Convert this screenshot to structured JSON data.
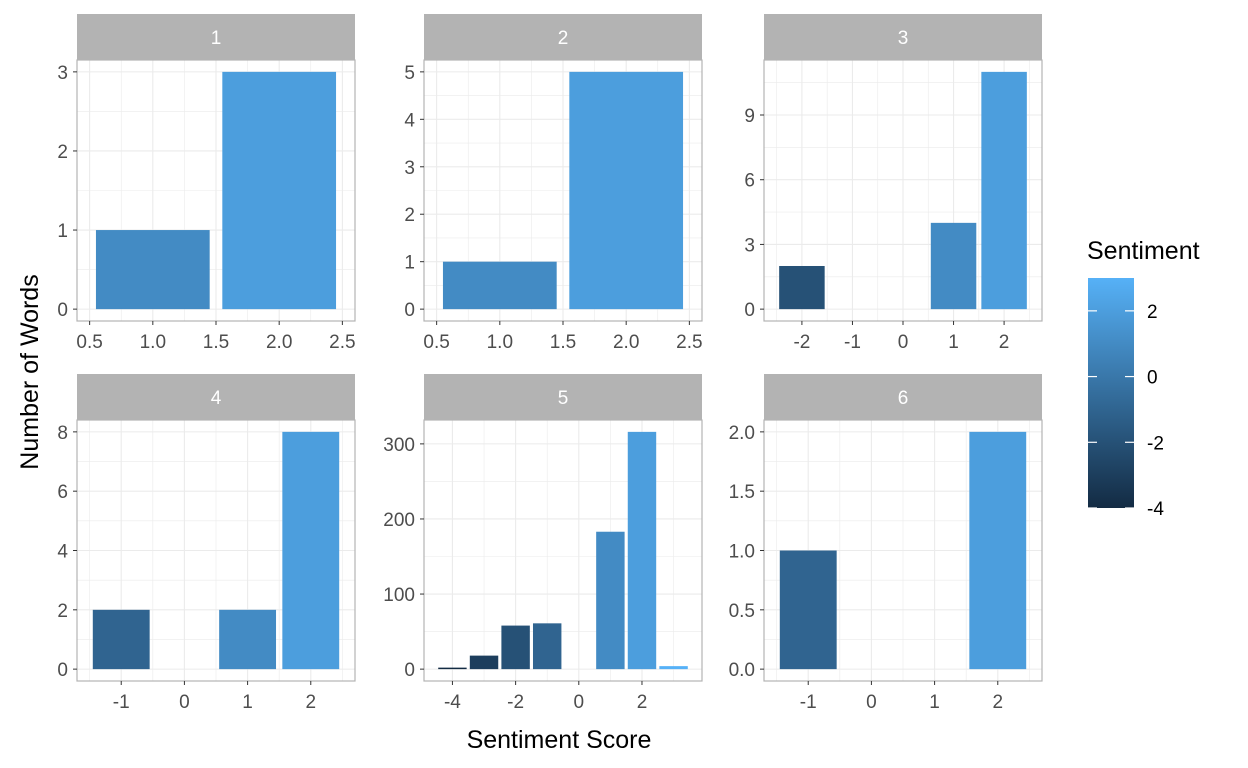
{
  "chart_data": {
    "type": "bar",
    "xlabel": "Sentiment Score",
    "ylabel": "Number of Words",
    "legend": {
      "title": "Sentiment",
      "placement": "right",
      "range": [
        -4,
        3
      ],
      "ticks": [
        2,
        0,
        -2,
        -4
      ],
      "tick_labels": [
        "2",
        "0",
        "-2",
        "-4"
      ],
      "color_low": "#132B43",
      "color_high": "#56B1F7"
    },
    "strip_color": "#b3b3b3",
    "grid": true,
    "facets": [
      {
        "label": "1",
        "x": [
          1,
          2
        ],
        "y": [
          1,
          3
        ],
        "xlim": [
          0.5,
          2.5
        ],
        "ylim": [
          0,
          3
        ],
        "xticks": [
          0.5,
          1.0,
          1.5,
          2.0,
          2.5
        ],
        "xtick_labels": [
          "0.5",
          "1.0",
          "1.5",
          "2.0",
          "2.5"
        ],
        "yticks": [
          0,
          1,
          2,
          3
        ],
        "ytick_labels": [
          "0",
          "1",
          "2",
          "3"
        ]
      },
      {
        "label": "2",
        "x": [
          1,
          2
        ],
        "y": [
          1,
          5
        ],
        "xlim": [
          0.5,
          2.5
        ],
        "ylim": [
          0,
          5
        ],
        "xticks": [
          0.5,
          1.0,
          1.5,
          2.0,
          2.5
        ],
        "xtick_labels": [
          "0.5",
          "1.0",
          "1.5",
          "2.0",
          "2.5"
        ],
        "yticks": [
          0,
          1,
          2,
          3,
          4,
          5
        ],
        "ytick_labels": [
          "0",
          "1",
          "2",
          "3",
          "4",
          "5"
        ]
      },
      {
        "label": "3",
        "x": [
          -2,
          1,
          2
        ],
        "y": [
          2,
          4,
          11
        ],
        "xlim": [
          -2.5,
          2.5
        ],
        "ylim": [
          0,
          11
        ],
        "xticks": [
          -2,
          -1,
          0,
          1,
          2
        ],
        "xtick_labels": [
          "-2",
          "-1",
          "0",
          "1",
          "2"
        ],
        "yticks": [
          0,
          3,
          6,
          9
        ],
        "ytick_labels": [
          "0",
          "3",
          "6",
          "9"
        ]
      },
      {
        "label": "4",
        "x": [
          -1,
          1,
          2
        ],
        "y": [
          2,
          2,
          8
        ],
        "xlim": [
          -1.5,
          2.5
        ],
        "ylim": [
          0,
          8
        ],
        "xticks": [
          -1,
          0,
          1,
          2
        ],
        "xtick_labels": [
          "-1",
          "0",
          "1",
          "2"
        ],
        "yticks": [
          0,
          2,
          4,
          6,
          8
        ],
        "ytick_labels": [
          "0",
          "2",
          "4",
          "6",
          "8"
        ]
      },
      {
        "label": "5",
        "x": [
          -4,
          -3,
          -2,
          -1,
          1,
          2,
          3
        ],
        "y": [
          2,
          18,
          58,
          61,
          183,
          316,
          4
        ],
        "xlim": [
          -4.5,
          3.5
        ],
        "ylim": [
          0,
          316
        ],
        "xticks": [
          -4,
          -2,
          0,
          2
        ],
        "xtick_labels": [
          "-4",
          "-2",
          "0",
          "2"
        ],
        "yticks": [
          0,
          100,
          200,
          300
        ],
        "ytick_labels": [
          "0",
          "100",
          "200",
          "300"
        ]
      },
      {
        "label": "6",
        "x": [
          -1,
          2
        ],
        "y": [
          1,
          2
        ],
        "xlim": [
          -1.5,
          2.5
        ],
        "ylim": [
          0,
          2
        ],
        "xticks": [
          -1,
          0,
          1,
          2
        ],
        "xtick_labels": [
          "-1",
          "0",
          "1",
          "2"
        ],
        "yticks": [
          0.0,
          0.5,
          1.0,
          1.5,
          2.0
        ],
        "ytick_labels": [
          "0.0",
          "0.5",
          "1.0",
          "1.5",
          "2.0"
        ]
      }
    ]
  }
}
